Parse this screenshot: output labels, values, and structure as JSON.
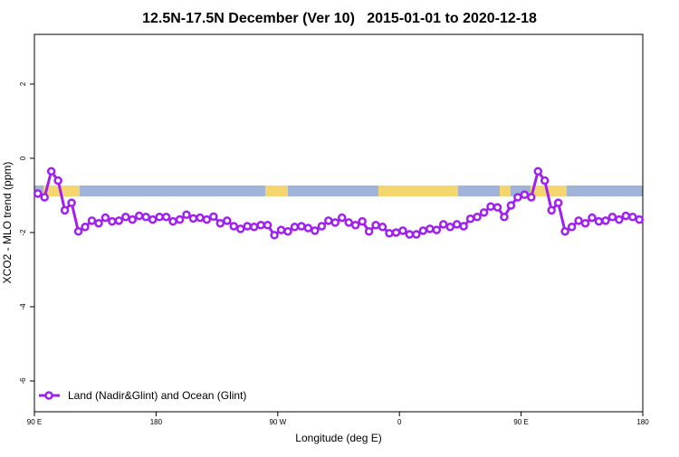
{
  "chart_data": {
    "type": "line",
    "title": "12.5N-17.5N December (Ver 10)   2015-01-01 to 2020-12-18",
    "x_label": "Longitude (deg E)",
    "y_label": "XCO2 - MLO trend (ppm)",
    "xlim": [
      90,
      540
    ],
    "ylim": [
      -6.83,
      3.34
    ],
    "xticks": [
      {
        "value": 90,
        "label": "90 E"
      },
      {
        "value": 180,
        "label": "180"
      },
      {
        "value": 270,
        "label": "90 W"
      },
      {
        "value": 360,
        "label": "0"
      },
      {
        "value": 450,
        "label": "90 E"
      },
      {
        "value": 540,
        "label": "180"
      }
    ],
    "yticks": [
      -6,
      -4,
      -2,
      0,
      2
    ],
    "legend_position": "bottom-left",
    "x": [
      92.5,
      97.5,
      102.5,
      107.5,
      112.5,
      117.5,
      122.5,
      127.5,
      132.5,
      137.5,
      142.5,
      147.5,
      152.5,
      157.5,
      162.5,
      167.5,
      172.5,
      177.5,
      182.5,
      187.5,
      192.5,
      197.5,
      202.5,
      207.5,
      212.5,
      217.5,
      222.5,
      227.5,
      232.5,
      237.5,
      242.5,
      247.5,
      252.5,
      257.5,
      262.5,
      267.5,
      272.5,
      277.5,
      282.5,
      287.5,
      292.5,
      297.5,
      302.5,
      307.5,
      312.5,
      317.5,
      322.5,
      327.5,
      332.5,
      337.5,
      342.5,
      347.5,
      352.5,
      357.5,
      362.5,
      367.5,
      372.5,
      377.5,
      382.5,
      387.5,
      392.5,
      397.5,
      402.5,
      407.5,
      412.5,
      417.5,
      422.5,
      427.5,
      432.5,
      437.5,
      442.5,
      447.5,
      452.5,
      457.5,
      462.5,
      467.5,
      472.5,
      477.5,
      482.5,
      487.5,
      492.5,
      497.5,
      502.5,
      507.5,
      512.5,
      517.5,
      522.5,
      527.5,
      532.5,
      537.5
    ],
    "series": [
      {
        "name": "Land (Nadir&Glint) and Ocean (Glint)",
        "color": "#a020f0",
        "values": [
          -0.95,
          -1.05,
          -0.35,
          -0.6,
          -1.4,
          -1.2,
          -1.97,
          -1.85,
          -1.68,
          -1.75,
          -1.6,
          -1.7,
          -1.68,
          -1.58,
          -1.65,
          -1.55,
          -1.58,
          -1.65,
          -1.58,
          -1.58,
          -1.7,
          -1.65,
          -1.52,
          -1.62,
          -1.6,
          -1.65,
          -1.57,
          -1.75,
          -1.68,
          -1.83,
          -1.9,
          -1.83,
          -1.85,
          -1.8,
          -1.8,
          -2.07,
          -1.93,
          -1.97,
          -1.85,
          -1.83,
          -1.88,
          -1.95,
          -1.83,
          -1.68,
          -1.73,
          -1.6,
          -1.73,
          -1.8,
          -1.7,
          -1.97,
          -1.8,
          -1.85,
          -2.02,
          -2.0,
          -1.95,
          -2.05,
          -2.05,
          -1.95,
          -1.9,
          -1.93,
          -1.78,
          -1.85,
          -1.78,
          -1.83,
          -1.63,
          -1.58,
          -1.46,
          -1.3,
          -1.32,
          -1.58,
          -1.27,
          -1.05,
          -0.98,
          -1.05,
          -0.35,
          -0.6,
          -1.4,
          -1.2,
          -1.97,
          -1.85,
          -1.68,
          -1.75,
          -1.6,
          -1.7,
          -1.68,
          -1.58,
          -1.65,
          -1.55,
          -1.58,
          -1.65
        ]
      }
    ]
  }
}
